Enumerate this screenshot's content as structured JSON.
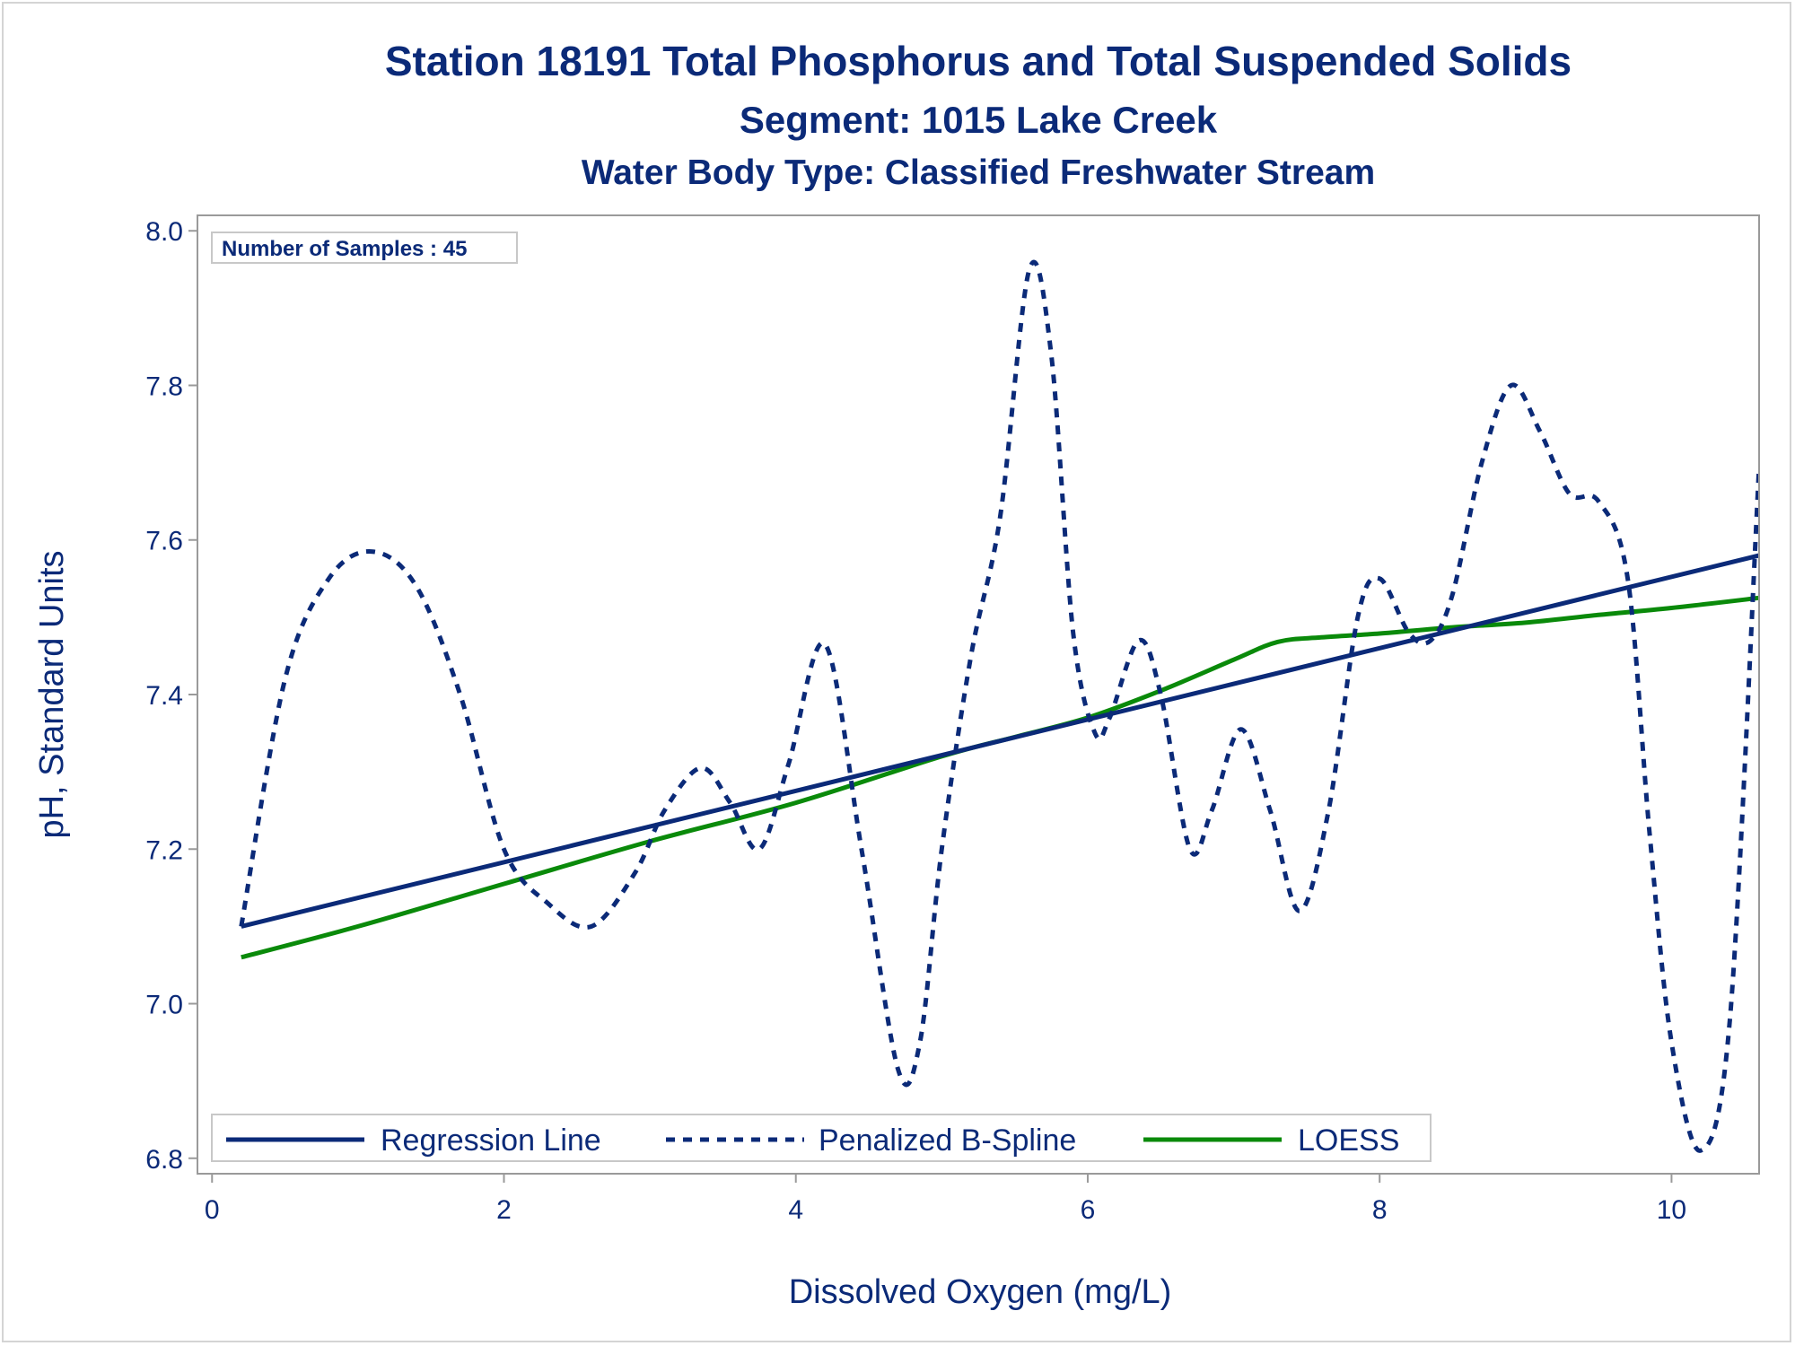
{
  "titles": {
    "line1": "Station 18191  Total Phosphorus and Total Suspended Solids",
    "line2": "Segment: 1015  Lake Creek",
    "line3": "Water Body Type: Classified Freshwater Stream"
  },
  "inset": {
    "label": "Number of Samples : 45"
  },
  "colors": {
    "text": "#0b2a78",
    "regression": "#0b2a78",
    "spline": "#0b2a78",
    "loess": "#0a8a0a",
    "frame": "#9a9a9a"
  },
  "chart_data": {
    "type": "line",
    "xlabel": "Dissolved Oxygen (mg/L)",
    "ylabel": "pH, Standard Units",
    "xlim": [
      -0.1,
      10.6
    ],
    "ylim": [
      6.78,
      8.02
    ],
    "xticks": [
      0,
      2,
      4,
      6,
      8,
      10
    ],
    "yticks": [
      6.8,
      7.0,
      7.2,
      7.4,
      7.6,
      7.8,
      8.0
    ],
    "ytick_labels": [
      "6.8",
      "7.0",
      "7.2",
      "7.4",
      "7.6",
      "7.8",
      "8.0"
    ],
    "xtick_labels": [
      "0",
      "2",
      "4",
      "6",
      "8",
      "10"
    ],
    "grid": false,
    "legend": {
      "position": "bottom-inside"
    },
    "series": [
      {
        "name": "Regression Line",
        "style": "solid",
        "x": [
          0.2,
          10.6
        ],
        "y": [
          7.1,
          7.58
        ]
      },
      {
        "name": "Penalized B-Spline",
        "style": "dashed",
        "x": [
          0.2,
          0.5,
          0.8,
          1.1,
          1.4,
          1.7,
          2.0,
          2.3,
          2.6,
          2.9,
          3.1,
          3.35,
          3.55,
          3.75,
          3.95,
          4.2,
          4.45,
          4.7,
          4.85,
          5.0,
          5.2,
          5.4,
          5.6,
          5.75,
          5.9,
          6.05,
          6.15,
          6.35,
          6.5,
          6.7,
          6.85,
          7.05,
          7.25,
          7.45,
          7.65,
          7.85,
          8.0,
          8.2,
          8.35,
          8.5,
          8.7,
          8.9,
          9.1,
          9.3,
          9.5,
          9.7,
          9.85,
          10.0,
          10.2,
          10.4,
          10.6
        ],
        "y": [
          7.1,
          7.42,
          7.55,
          7.585,
          7.54,
          7.4,
          7.2,
          7.13,
          7.1,
          7.17,
          7.25,
          7.305,
          7.26,
          7.2,
          7.31,
          7.465,
          7.2,
          6.915,
          6.95,
          7.2,
          7.45,
          7.63,
          7.95,
          7.84,
          7.48,
          7.35,
          7.37,
          7.47,
          7.4,
          7.2,
          7.25,
          7.355,
          7.25,
          7.12,
          7.25,
          7.5,
          7.55,
          7.48,
          7.47,
          7.53,
          7.7,
          7.8,
          7.74,
          7.66,
          7.65,
          7.55,
          7.22,
          6.95,
          6.81,
          6.98,
          7.695
        ]
      },
      {
        "name": "LOESS",
        "style": "solid",
        "x": [
          0.2,
          1.0,
          2.0,
          3.0,
          4.0,
          5.0,
          5.5,
          6.0,
          6.5,
          7.0,
          7.3,
          7.6,
          8.0,
          8.5,
          9.0,
          9.5,
          10.0,
          10.6
        ],
        "y": [
          7.06,
          7.1,
          7.155,
          7.21,
          7.26,
          7.32,
          7.345,
          7.37,
          7.405,
          7.445,
          7.468,
          7.474,
          7.479,
          7.487,
          7.493,
          7.503,
          7.512,
          7.525
        ]
      }
    ]
  }
}
